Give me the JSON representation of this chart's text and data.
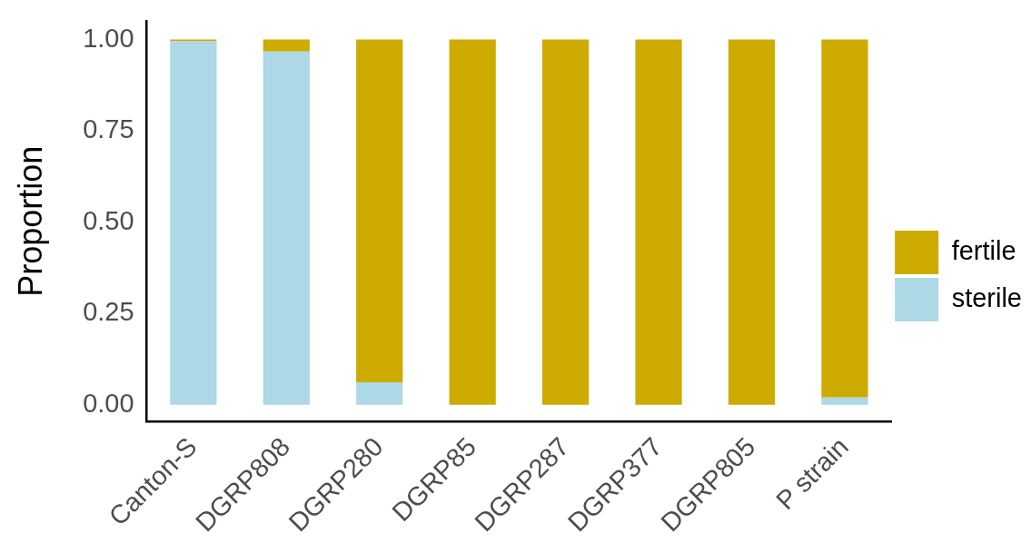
{
  "chart_data": {
    "type": "bar",
    "stacked": true,
    "ylabel": "Proportion",
    "categories": [
      "Canton-S",
      "DGRP808",
      "DGRP280",
      "DGRP85",
      "DGRP287",
      "DGRP377",
      "DGRP805",
      "P strain"
    ],
    "series": [
      {
        "name": "sterile",
        "color": "#add8e6",
        "values": [
          0.995,
          0.967,
          0.062,
          0,
          0,
          0,
          0,
          0.02
        ]
      },
      {
        "name": "fertile",
        "color": "#cdab00",
        "values": [
          0.005,
          0.033,
          0.938,
          1,
          1,
          1,
          1,
          0.98
        ]
      }
    ],
    "ylim": [
      -0.045,
      1.05
    ],
    "yticks": [
      {
        "value": 0,
        "label": "0.00"
      },
      {
        "value": 0.25,
        "label": "0.25"
      },
      {
        "value": 0.5,
        "label": "0.50"
      },
      {
        "value": 0.75,
        "label": "0.75"
      },
      {
        "value": 1,
        "label": "1.00"
      }
    ],
    "grid": false,
    "legend": "right"
  }
}
